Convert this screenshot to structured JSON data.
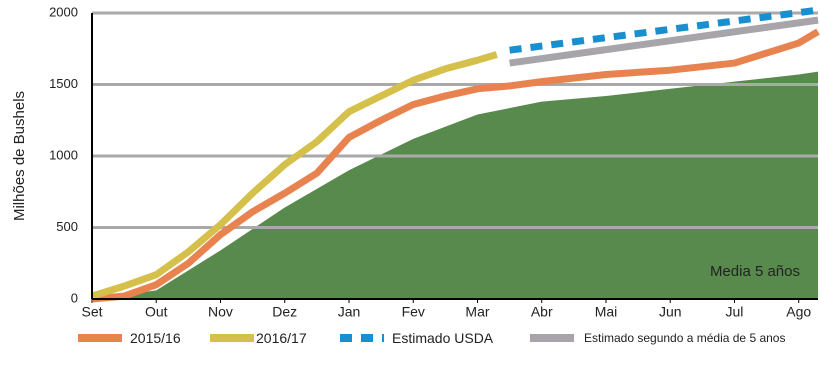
{
  "chart_data": {
    "type": "line",
    "ylabel": "Milhões de Bushels",
    "annotation": "Media 5 años",
    "xlim": [
      0,
      11.3
    ],
    "ylim": [
      0,
      2000
    ],
    "yticks": [
      0,
      500,
      1000,
      1500,
      2000
    ],
    "grid": true,
    "xticks": [
      {
        "value": 0,
        "label": "Set"
      },
      {
        "value": 1,
        "label": "Out"
      },
      {
        "value": 2,
        "label": "Nov"
      },
      {
        "value": 3,
        "label": "Dez"
      },
      {
        "value": 4,
        "label": "Jan"
      },
      {
        "value": 5,
        "label": "Fev"
      },
      {
        "value": 6,
        "label": "Mar"
      },
      {
        "value": 7,
        "label": "Abr"
      },
      {
        "value": 8,
        "label": "Mai"
      },
      {
        "value": 9,
        "label": "Jun"
      },
      {
        "value": 10,
        "label": "Jul"
      },
      {
        "value": 11,
        "label": "Ago"
      }
    ],
    "area": {
      "color": "#588a4e",
      "x": [
        0,
        1,
        2,
        3,
        4,
        5,
        6,
        7,
        8,
        9,
        10,
        11,
        11.3
      ],
      "values": [
        0,
        60,
        340,
        640,
        900,
        1120,
        1290,
        1380,
        1420,
        1470,
        1520,
        1570,
        1590
      ]
    },
    "series": [
      {
        "name": "2015/16",
        "color": "#e8834f",
        "style": "solid",
        "x": [
          0,
          0.5,
          1,
          1.5,
          2,
          2.5,
          3,
          3.5,
          4,
          4.5,
          5,
          5.5,
          6,
          6.5,
          7,
          8,
          9,
          10,
          10.5,
          11,
          11.3
        ],
        "values": [
          0,
          20,
          100,
          250,
          450,
          610,
          740,
          880,
          1130,
          1250,
          1360,
          1420,
          1470,
          1490,
          1520,
          1570,
          1600,
          1650,
          1720,
          1790,
          1870
        ]
      },
      {
        "name": "2016/17",
        "color": "#d4c04a",
        "style": "solid",
        "x": [
          0,
          0.5,
          1,
          1.5,
          2,
          2.5,
          3,
          3.5,
          4,
          4.5,
          5,
          5.5,
          6,
          6.3
        ],
        "values": [
          20,
          90,
          170,
          330,
          520,
          740,
          940,
          1100,
          1310,
          1420,
          1530,
          1610,
          1670,
          1710
        ]
      },
      {
        "name": "Estimado USDA",
        "color": "#1a8fd0",
        "style": "dashed",
        "x": [
          6.5,
          11.3
        ],
        "values": [
          1740,
          2020
        ]
      },
      {
        "name": "Estimado segundo a média de 5 anos",
        "color": "#a7a5aa",
        "style": "solid",
        "x": [
          6.5,
          11.3
        ],
        "values": [
          1650,
          1950
        ]
      }
    ]
  }
}
